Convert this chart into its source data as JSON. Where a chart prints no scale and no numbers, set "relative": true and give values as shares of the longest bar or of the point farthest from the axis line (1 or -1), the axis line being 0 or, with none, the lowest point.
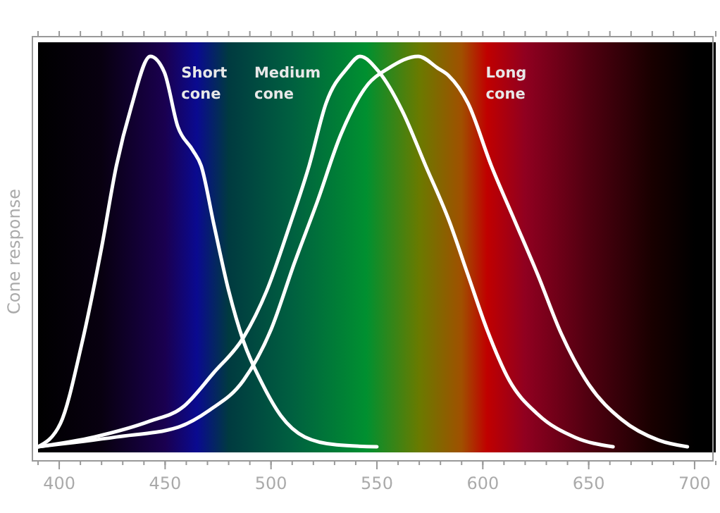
{
  "chart_data": {
    "type": "line",
    "ylabel": "Cone response",
    "relative": true,
    "xlim": [
      390,
      710
    ],
    "xticks": [
      400,
      450,
      500,
      550,
      600,
      650,
      700
    ],
    "line_style": "solid",
    "series": [
      {
        "name": "Short cone",
        "color": "#ffffff",
        "x": [
          390,
          400.6,
          410.5,
          420,
          427,
          434,
          443,
          449.6,
          456,
          463,
          467,
          473,
          480,
          487,
          496,
          504.6,
          516,
          531,
          550
        ],
        "values": [
          0,
          0.06,
          0.26,
          0.51,
          0.72,
          0.87,
          1.0,
          0.96,
          0.82,
          0.76,
          0.72,
          0.57,
          0.4,
          0.27,
          0.16,
          0.08,
          0.025,
          0.005,
          0
        ]
      },
      {
        "name": "Medium cone",
        "color": "#ffffff",
        "x": [
          390,
          416.5,
          443,
          458,
          473,
          487,
          498,
          509,
          518,
          526,
          536,
          542,
          551,
          562,
          573,
          584,
          593,
          602,
          612.5,
          626,
          643.6,
          661.5
        ],
        "values": [
          0,
          0.025,
          0.066,
          0.1,
          0.19,
          0.28,
          0.4,
          0.57,
          0.72,
          0.88,
          0.97,
          1.0,
          0.96,
          0.86,
          0.72,
          0.58,
          0.44,
          0.3,
          0.17,
          0.083,
          0.024,
          0
        ]
      },
      {
        "name": "Long cone",
        "color": "#ffffff",
        "x": [
          390,
          427,
          456,
          471,
          487,
          500,
          511,
          522,
          533,
          546,
          555.6,
          569.5,
          578.7,
          584,
          593,
          604,
          615,
          626,
          637,
          650,
          665.5,
          683,
          696.6
        ],
        "values": [
          0,
          0.025,
          0.05,
          0.094,
          0.17,
          0.3,
          0.47,
          0.63,
          0.8,
          0.93,
          0.97,
          1.0,
          0.97,
          0.95,
          0.88,
          0.72,
          0.58,
          0.44,
          0.29,
          0.16,
          0.07,
          0.017,
          0
        ]
      }
    ]
  }
}
